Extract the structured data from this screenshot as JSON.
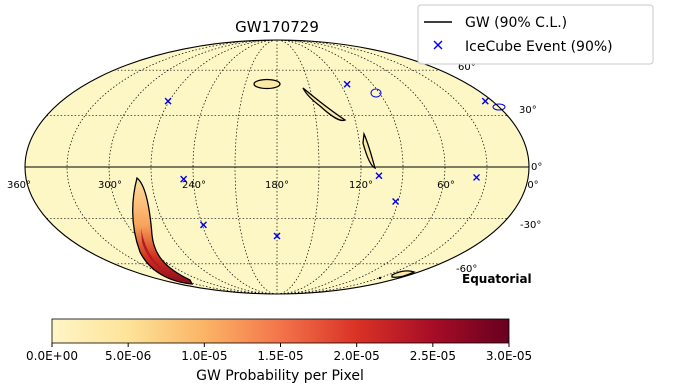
{
  "chart_data": {
    "type": "scatter",
    "projection": "mollweide",
    "coordinate_frame": "Equatorial",
    "title": "GW170729",
    "frame_label": "Equatorial",
    "background_color": "#fdf7c6",
    "grid": true,
    "legend": {
      "placement": "top-right",
      "entries": [
        {
          "label": "GW (90% C.L.)",
          "marker": "line",
          "color": "#000000"
        },
        {
          "label": "IceCube Event (90%)",
          "marker": "x",
          "color": "#0000ee"
        }
      ]
    },
    "ra_ticks": [
      "360°",
      "300°",
      "240°",
      "180°",
      "120°",
      "60°",
      "0°"
    ],
    "dec_ticks": [
      "60°",
      "30°",
      "0°",
      "-30°",
      "-60°"
    ],
    "icecube_events": [
      {
        "ra": 271,
        "dec": 39
      },
      {
        "ra": 6,
        "dec": 39
      },
      {
        "ra": 114,
        "dec": 50
      },
      {
        "ra": 247,
        "dec": -7
      },
      {
        "ra": 107,
        "dec": -5
      },
      {
        "ra": 37,
        "dec": -6
      },
      {
        "ra": 92,
        "dec": -20
      },
      {
        "ra": 239,
        "dec": -34
      },
      {
        "ra": 180,
        "dec": -41
      }
    ],
    "colorbar": {
      "label": "GW Probability per Pixel",
      "min": 0,
      "max": 3e-05,
      "ticks": [
        "0.0E+00",
        "5.0E-06",
        "1.0E-05",
        "1.5E-05",
        "2.0E-05",
        "2.5E-05",
        "3.0E-05"
      ],
      "colors": [
        "#fff5c6",
        "#fde398",
        "#fbb466",
        "#f3744a",
        "#d93226",
        "#a70d27",
        "#67001f"
      ]
    }
  }
}
